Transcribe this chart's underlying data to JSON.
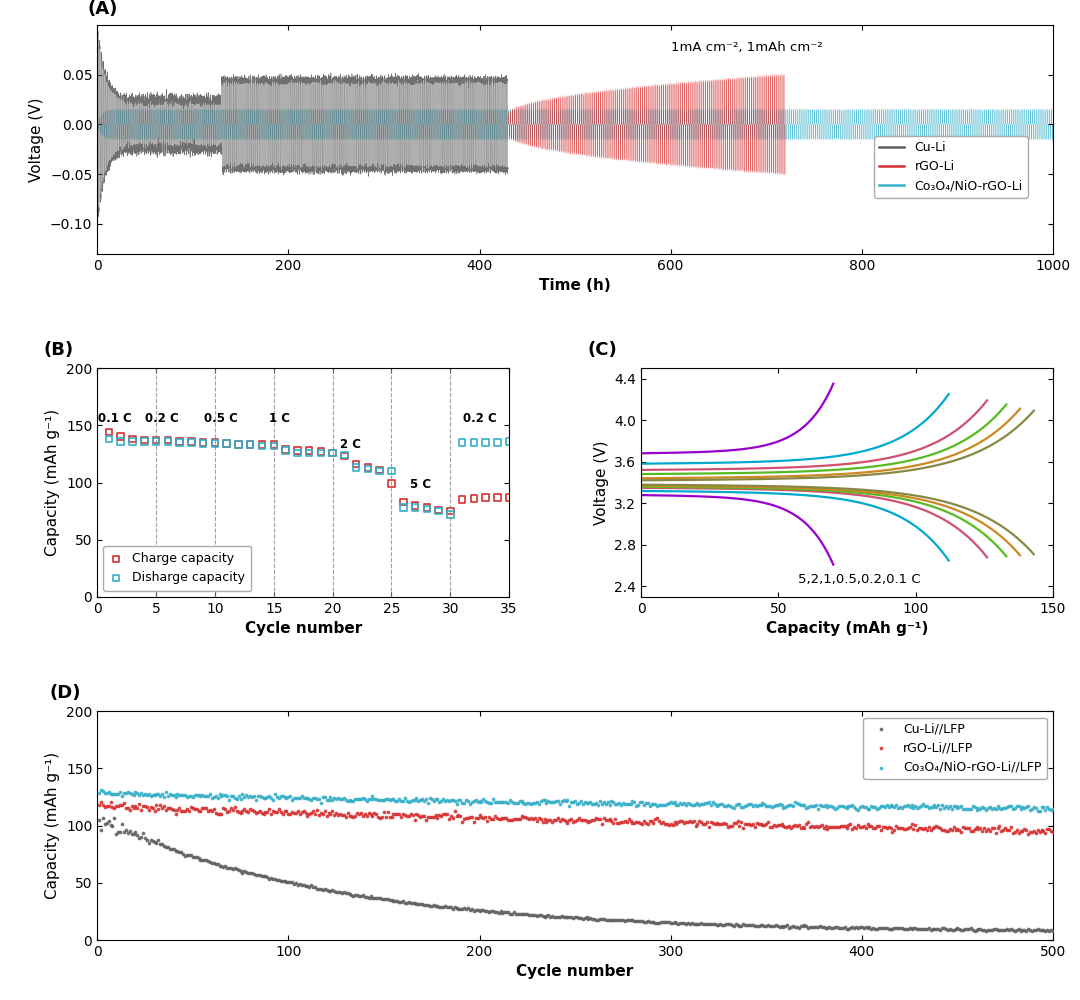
{
  "panel_A": {
    "title": "(A)",
    "xlabel": "Time (h)",
    "ylabel": "Voltage (V)",
    "xlim": [
      0,
      1000
    ],
    "ylim": [
      -0.13,
      0.1
    ],
    "yticks": [
      -0.1,
      -0.05,
      0.0,
      0.05
    ],
    "xticks": [
      0,
      200,
      400,
      600,
      800,
      1000
    ],
    "annotation": "1mA cm⁻², 1mAh cm⁻²",
    "legend_labels": [
      "Cu-Li",
      "rGO-Li",
      "Co₃O₄/NiO-rGO-Li"
    ],
    "legend_colors": [
      "#606060",
      "#d63030",
      "#35aec8"
    ],
    "cu_li_end": 430,
    "rgo_li_end": 720
  },
  "panel_B": {
    "title": "(B)",
    "xlabel": "Cycle number",
    "ylabel": "Capacity (mAh g⁻¹)",
    "xlim": [
      0,
      35
    ],
    "ylim": [
      0,
      200
    ],
    "yticks": [
      0,
      50,
      100,
      150,
      200
    ],
    "xticks": [
      0,
      5,
      10,
      15,
      20,
      25,
      30,
      35
    ],
    "rate_labels": [
      "0.1 C",
      "0.2 C",
      "0.5 C",
      "1 C",
      "2 C",
      "5 C",
      "0.2 C"
    ],
    "rate_positions_x": [
      1.5,
      5.5,
      10.5,
      15.5,
      21.5,
      27.5,
      32.5
    ],
    "rate_positions_y": [
      153,
      153,
      153,
      153,
      130,
      95,
      153
    ],
    "vline_positions": [
      5,
      10,
      15,
      20,
      25,
      30
    ],
    "charge_x": [
      1,
      2,
      3,
      4,
      5,
      6,
      7,
      8,
      9,
      10,
      11,
      12,
      13,
      14,
      15,
      16,
      17,
      18,
      19,
      20,
      21,
      22,
      23,
      24,
      25,
      26,
      27,
      28,
      29,
      30,
      31,
      32,
      33,
      34,
      35
    ],
    "charge_y": [
      144,
      140,
      138,
      137,
      137,
      137,
      136,
      136,
      135,
      135,
      134,
      133,
      133,
      133,
      133,
      129,
      128,
      128,
      127,
      126,
      123,
      116,
      113,
      111,
      99,
      83,
      80,
      78,
      76,
      75,
      85,
      86,
      87,
      87,
      87
    ],
    "discharge_x": [
      1,
      2,
      3,
      4,
      5,
      6,
      7,
      8,
      9,
      10,
      11,
      12,
      13,
      14,
      15,
      16,
      17,
      18,
      19,
      20,
      21,
      22,
      23,
      24,
      25,
      26,
      27,
      28,
      29,
      30,
      31,
      32,
      33,
      34,
      35
    ],
    "discharge_y": [
      138,
      136,
      136,
      136,
      136,
      136,
      135,
      135,
      134,
      134,
      134,
      133,
      133,
      132,
      132,
      128,
      126,
      126,
      126,
      126,
      124,
      113,
      112,
      110,
      110,
      78,
      78,
      77,
      75,
      72,
      135,
      135,
      135,
      135,
      136
    ],
    "charge_color": "#d63030",
    "discharge_color": "#35aec8"
  },
  "panel_C": {
    "title": "(C)",
    "xlabel": "Capacity (mAh g⁻¹)",
    "ylabel": "Voltage (V)",
    "xlim": [
      0,
      150
    ],
    "ylim": [
      2.3,
      4.5
    ],
    "yticks": [
      2.4,
      2.8,
      3.2,
      3.6,
      4.0,
      4.4
    ],
    "xticks": [
      0,
      50,
      100,
      150
    ],
    "annotation": "5,2,1,0.5,0.2,0.1 C",
    "colors": [
      "#9900cc",
      "#00aacc",
      "#d05070",
      "#55bb22",
      "#cc8822",
      "#888844"
    ],
    "cap_maxes": [
      70,
      112,
      126,
      133,
      138,
      143
    ],
    "v_plateau_charge": [
      3.68,
      3.58,
      3.52,
      3.48,
      3.44,
      3.42
    ],
    "v_plateau_discharge": [
      3.28,
      3.32,
      3.35,
      3.36,
      3.37,
      3.38
    ]
  },
  "panel_D": {
    "title": "(D)",
    "xlabel": "Cycle number",
    "ylabel": "Capacity (mAh g⁻¹)",
    "xlim": [
      0,
      500
    ],
    "ylim": [
      0,
      200
    ],
    "yticks": [
      0,
      50,
      100,
      150,
      200
    ],
    "xticks": [
      0,
      100,
      200,
      300,
      400,
      500
    ],
    "legend_labels": [
      "Cu-Li//LFP",
      "rGO-Li//LFP",
      "Co₃O₄/NiO-rGO-Li//LFP"
    ],
    "legend_colors": [
      "#606060",
      "#d63030",
      "#35aec8"
    ]
  },
  "background_color": "#ffffff",
  "font_size": 11
}
